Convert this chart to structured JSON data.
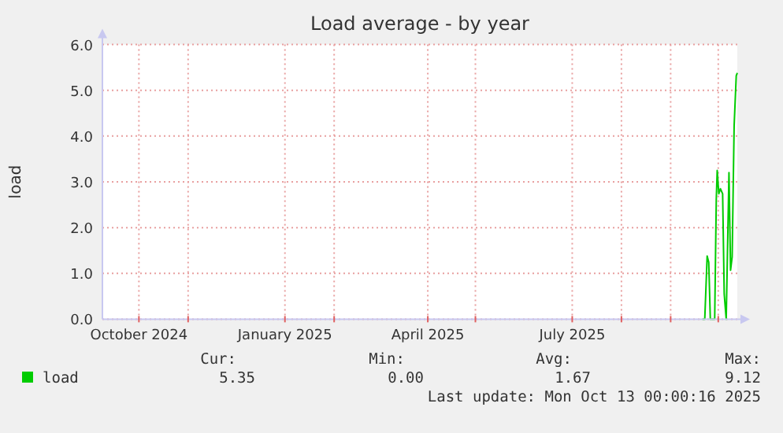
{
  "chart_data": {
    "type": "line",
    "title": "Load average - by year",
    "ylabel": "load",
    "xlim": [
      "2024-09-08",
      "2025-10-13"
    ],
    "xticks": [
      {
        "value": "2024-10-01",
        "label": "October 2024"
      },
      {
        "value": "2024-11-01",
        "label": null
      },
      {
        "value": "2025-01-01",
        "label": "January 2025"
      },
      {
        "value": "2025-02-01",
        "label": null
      },
      {
        "value": "2025-04-01",
        "label": "April 2025"
      },
      {
        "value": "2025-05-01",
        "label": null
      },
      {
        "value": "2025-07-01",
        "label": "July 2025"
      },
      {
        "value": "2025-08-01",
        "label": null
      },
      {
        "value": "2025-09-01",
        "label": null
      },
      {
        "value": "2025-10-01",
        "label": null
      }
    ],
    "ylim": [
      0,
      6
    ],
    "yticks": [
      {
        "value": 0,
        "label": "0.0"
      },
      {
        "value": 1,
        "label": "1.0"
      },
      {
        "value": 2,
        "label": "2.0"
      },
      {
        "value": 3,
        "label": "3.0"
      },
      {
        "value": 4,
        "label": "4.0"
      },
      {
        "value": 5,
        "label": "5.0"
      },
      {
        "value": 6,
        "label": "6.0"
      }
    ],
    "grid": true,
    "legend": "bottom left",
    "series": [
      {
        "name": "load",
        "color": "#00cc00",
        "x": [
          "2025-09-21T00:00",
          "2025-09-22T12:00",
          "2025-09-24T00:00",
          "2025-09-25T00:00",
          "2025-09-26T00:00",
          "2025-09-28T18:00",
          "2025-09-29T18:00",
          "2025-09-30T08:00",
          "2025-10-01T08:00",
          "2025-10-02T08:00",
          "2025-10-03T18:00",
          "2025-10-04T18:00",
          "2025-10-06T00:00",
          "2025-10-07T18:00",
          "2025-10-08T18:00",
          "2025-10-09T18:00",
          "2025-10-11T00:00",
          "2025-10-12T08:00",
          "2025-10-13T00:00"
        ],
        "values": [
          0,
          0,
          1.38,
          1.24,
          0,
          0,
          2.62,
          3.25,
          2.74,
          2.85,
          2.74,
          0.55,
          0,
          3.2,
          1.07,
          1.36,
          4.23,
          5.32,
          5.38
        ]
      }
    ],
    "annotations": [
      "Cur:",
      "Min:",
      "Avg:",
      "Max:",
      "5.35",
      "0.00",
      "1.67",
      "9.12",
      "Last update: Mon Oct 13 00:00:16 2025"
    ]
  }
}
